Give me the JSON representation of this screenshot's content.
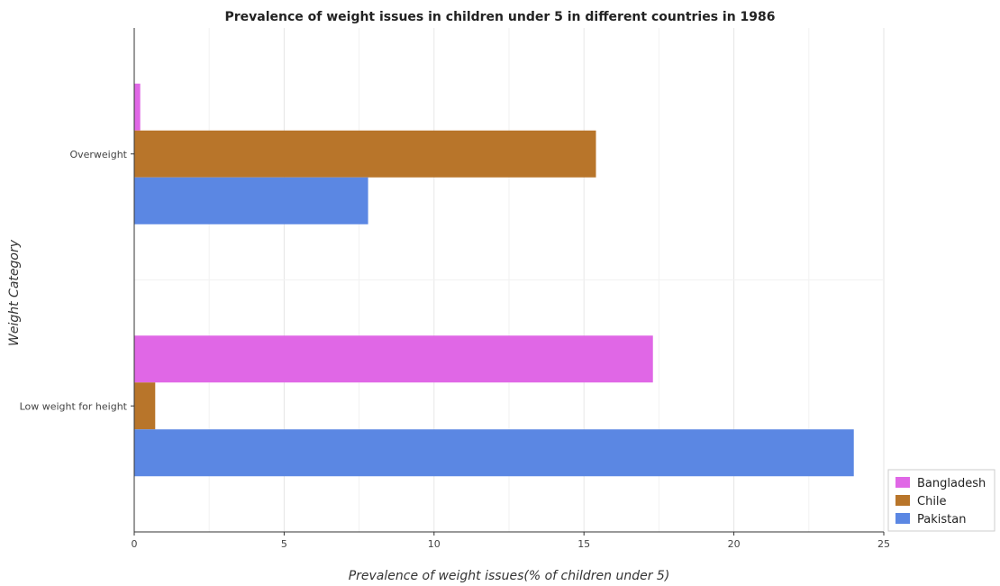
{
  "chart_data": {
    "type": "bar",
    "orientation": "horizontal",
    "title": "Prevalence of weight issues in children under 5 in different countries in 1986",
    "xlabel": "Prevalence of weight issues(% of children under 5)",
    "ylabel": "Weight Category",
    "categories": [
      "Overweight",
      "Low weight for height"
    ],
    "xlim": [
      0,
      25
    ],
    "xticks": [
      "0",
      "5",
      "10",
      "15",
      "20",
      "25"
    ],
    "grid": true,
    "legend_position": "bottom-right",
    "series": [
      {
        "name": "Bangladesh",
        "color": "#e067e6",
        "values": [
          0.2,
          17.3
        ]
      },
      {
        "name": "Chile",
        "color": "#b8752a",
        "values": [
          15.4,
          0.7
        ]
      },
      {
        "name": "Pakistan",
        "color": "#5b87e3",
        "values": [
          7.8,
          24.0
        ]
      }
    ]
  }
}
